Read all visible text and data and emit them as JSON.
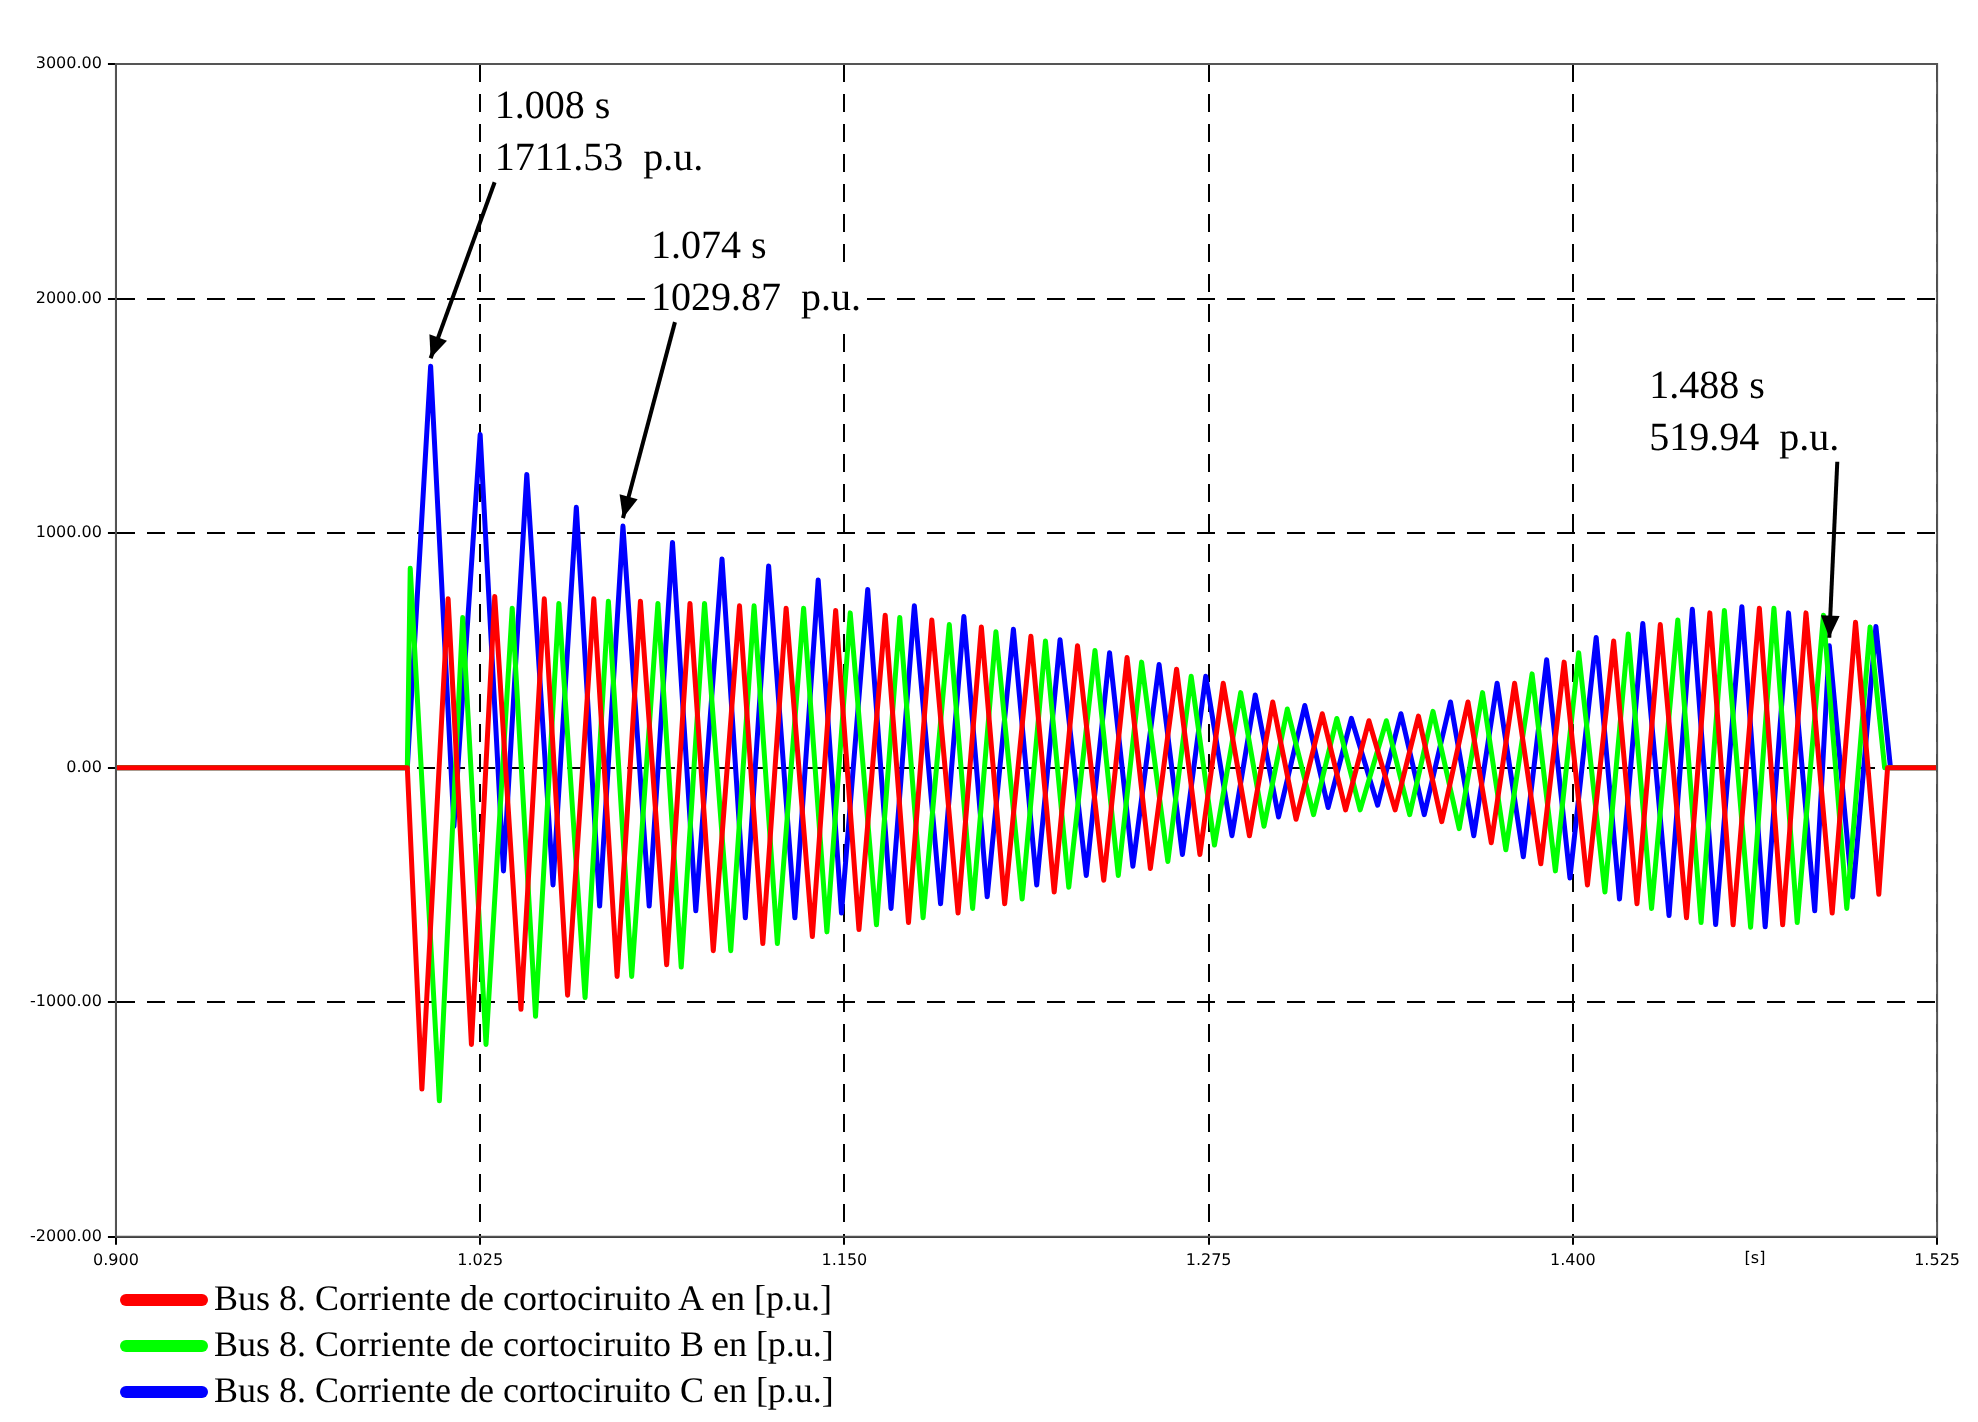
{
  "chart_data": {
    "type": "line",
    "xlabel": "[s]",
    "xlim": [
      0.9,
      1.525
    ],
    "xticks": [
      {
        "value": 0.9,
        "label": "0.900"
      },
      {
        "value": 1.025,
        "label": "1.025"
      },
      {
        "value": 1.15,
        "label": "1.150"
      },
      {
        "value": 1.275,
        "label": "1.275"
      },
      {
        "value": 1.4,
        "label": "1.400"
      },
      {
        "value": 1.525,
        "label": "1.525"
      }
    ],
    "ylim": [
      -2000,
      3000
    ],
    "yticks": [
      {
        "value": -2000,
        "label": "-2000.00"
      },
      {
        "value": -1000,
        "label": "-1000.00"
      },
      {
        "value": 0,
        "label": "0.00"
      },
      {
        "value": 1000,
        "label": "1000.00"
      },
      {
        "value": 2000,
        "label": "2000.00"
      },
      {
        "value": 3000,
        "label": "3000.00"
      }
    ],
    "grid": true,
    "legend": "bottom",
    "marker": "none",
    "line_style": "solid",
    "annotations": [
      {
        "text": "1.008 s\n1711.53  p.u.",
        "x": 1.008,
        "y": 1711.53
      },
      {
        "text": "1.074 s\n1029.87  p.u.",
        "x": 1.074,
        "y": 1029.87
      },
      {
        "text": "1.488 s\n519.94  p.u.",
        "x": 1.488,
        "y": 519.94
      }
    ],
    "series": [
      {
        "name": "Bus 8. Corriente de cortociruito A en [p.u.]",
        "color": "#ff0000",
        "x": [
          0.9,
          1.0,
          1.005,
          1.014,
          1.022,
          1.03,
          1.039,
          1.047,
          1.055,
          1.064,
          1.072,
          1.08,
          1.089,
          1.097,
          1.105,
          1.114,
          1.122,
          1.13,
          1.139,
          1.147,
          1.155,
          1.164,
          1.172,
          1.18,
          1.189,
          1.197,
          1.205,
          1.214,
          1.222,
          1.23,
          1.239,
          1.247,
          1.255,
          1.264,
          1.272,
          1.28,
          1.289,
          1.297,
          1.305,
          1.314,
          1.322,
          1.33,
          1.339,
          1.347,
          1.355,
          1.364,
          1.372,
          1.38,
          1.389,
          1.397,
          1.405,
          1.414,
          1.422,
          1.43,
          1.439,
          1.447,
          1.455,
          1.464,
          1.472,
          1.48,
          1.489,
          1.497,
          1.505,
          1.508,
          1.525
        ],
        "values": [
          0,
          0,
          -1370,
          720,
          -1180,
          730,
          -1030,
          720,
          -970,
          720,
          -890,
          710,
          -840,
          700,
          -780,
          690,
          -750,
          680,
          -720,
          670,
          -690,
          650,
          -660,
          630,
          -620,
          600,
          -580,
          560,
          -530,
          520,
          -480,
          470,
          -430,
          420,
          -370,
          360,
          -290,
          280,
          -220,
          230,
          -180,
          200,
          -180,
          220,
          -230,
          280,
          -320,
          360,
          -410,
          450,
          -500,
          540,
          -580,
          610,
          -640,
          660,
          -670,
          680,
          -670,
          660,
          -620,
          620,
          -540,
          0,
          0
        ]
      },
      {
        "name": "Bus 8. Corriente de cortociruito B en [p.u.]",
        "color": "#00ff00",
        "x": [
          0.9,
          1.0,
          1.001,
          1.011,
          1.019,
          1.027,
          1.036,
          1.044,
          1.052,
          1.061,
          1.069,
          1.077,
          1.086,
          1.094,
          1.102,
          1.111,
          1.119,
          1.127,
          1.136,
          1.144,
          1.152,
          1.161,
          1.169,
          1.177,
          1.186,
          1.194,
          1.202,
          1.211,
          1.219,
          1.227,
          1.236,
          1.244,
          1.252,
          1.261,
          1.269,
          1.277,
          1.286,
          1.294,
          1.302,
          1.311,
          1.319,
          1.327,
          1.336,
          1.344,
          1.352,
          1.361,
          1.369,
          1.377,
          1.386,
          1.394,
          1.402,
          1.411,
          1.419,
          1.427,
          1.436,
          1.444,
          1.452,
          1.461,
          1.469,
          1.477,
          1.486,
          1.494,
          1.502,
          1.507,
          1.525
        ],
        "values": [
          0,
          0,
          850,
          -1420,
          640,
          -1180,
          680,
          -1060,
          700,
          -980,
          710,
          -890,
          700,
          -850,
          700,
          -780,
          690,
          -750,
          680,
          -700,
          660,
          -670,
          640,
          -640,
          610,
          -600,
          580,
          -560,
          540,
          -510,
          500,
          -460,
          450,
          -400,
          390,
          -330,
          320,
          -250,
          250,
          -200,
          210,
          -180,
          200,
          -200,
          240,
          -260,
          320,
          -350,
          400,
          -440,
          490,
          -530,
          570,
          -600,
          630,
          -660,
          670,
          -680,
          680,
          -660,
          650,
          -600,
          600,
          0,
          0
        ]
      },
      {
        "name": "Bus 8. Corriente de cortociruito C en [p.u.]",
        "color": "#0000ff",
        "x": [
          0.9,
          1.0,
          1.008,
          1.016,
          1.025,
          1.033,
          1.041,
          1.05,
          1.058,
          1.066,
          1.074,
          1.083,
          1.091,
          1.099,
          1.108,
          1.116,
          1.124,
          1.133,
          1.141,
          1.149,
          1.158,
          1.166,
          1.174,
          1.183,
          1.191,
          1.199,
          1.208,
          1.216,
          1.224,
          1.233,
          1.241,
          1.249,
          1.258,
          1.266,
          1.274,
          1.283,
          1.291,
          1.299,
          1.308,
          1.316,
          1.324,
          1.333,
          1.341,
          1.349,
          1.358,
          1.366,
          1.374,
          1.383,
          1.391,
          1.399,
          1.408,
          1.416,
          1.424,
          1.433,
          1.441,
          1.449,
          1.458,
          1.466,
          1.474,
          1.483,
          1.488,
          1.496,
          1.504,
          1.509,
          1.525
        ],
        "values": [
          0,
          0,
          1711.53,
          -250,
          1420,
          -440,
          1250,
          -500,
          1110,
          -590,
          1029.87,
          -590,
          960,
          -610,
          890,
          -640,
          860,
          -640,
          800,
          -620,
          760,
          -600,
          690,
          -580,
          645,
          -550,
          590,
          -500,
          545,
          -460,
          490,
          -420,
          440,
          -370,
          390,
          -290,
          310,
          -210,
          265,
          -170,
          210,
          -160,
          230,
          -200,
          280,
          -290,
          360,
          -380,
          460,
          -470,
          555,
          -560,
          615,
          -630,
          675,
          -669,
          686,
          -678,
          660,
          -610,
          519.94,
          -551,
          602,
          0,
          0
        ]
      }
    ]
  }
}
